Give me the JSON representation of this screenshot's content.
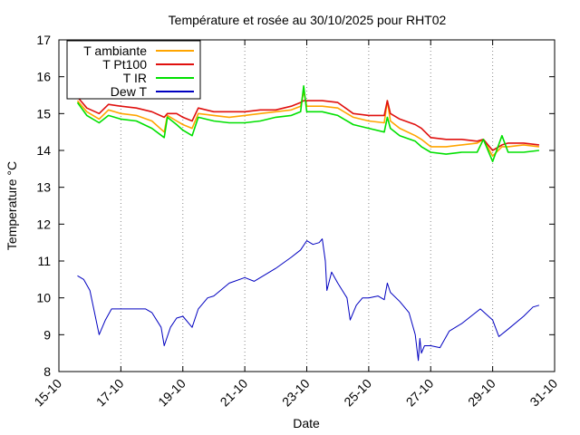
{
  "chart_data": {
    "type": "line",
    "title": "Température et rosée au 30/10/2025 pour RHT02",
    "xlabel": "Date",
    "ylabel": "Temperature °C",
    "xlim": [
      0,
      16
    ],
    "ylim": [
      8,
      17
    ],
    "x_ticks": [
      {
        "x": 0,
        "label": "15-10"
      },
      {
        "x": 2,
        "label": "17-10"
      },
      {
        "x": 4,
        "label": "19-10"
      },
      {
        "x": 6,
        "label": "21-10"
      },
      {
        "x": 8,
        "label": "23-10"
      },
      {
        "x": 10,
        "label": "25-10"
      },
      {
        "x": 12,
        "label": "27-10"
      },
      {
        "x": 14,
        "label": "29-10"
      },
      {
        "x": 16,
        "label": "31-10"
      }
    ],
    "y_ticks": [
      8,
      9,
      10,
      11,
      12,
      13,
      14,
      15,
      16,
      17
    ],
    "grid": "vertical dotted at each x tick",
    "legend_position": "top-left",
    "series": [
      {
        "name": "T ambiante",
        "color": "#ffa500",
        "points": [
          [
            0.6,
            15.35
          ],
          [
            0.9,
            15.05
          ],
          [
            1.3,
            14.85
          ],
          [
            1.6,
            15.1
          ],
          [
            2.0,
            15.0
          ],
          [
            2.5,
            14.95
          ],
          [
            3.0,
            14.8
          ],
          [
            3.4,
            14.5
          ],
          [
            3.5,
            14.95
          ],
          [
            3.8,
            14.8
          ],
          [
            4.0,
            14.7
          ],
          [
            4.3,
            14.6
          ],
          [
            4.5,
            15.0
          ],
          [
            5.0,
            14.95
          ],
          [
            5.5,
            14.9
          ],
          [
            6.0,
            14.95
          ],
          [
            6.5,
            15.0
          ],
          [
            7.0,
            15.05
          ],
          [
            7.5,
            15.1
          ],
          [
            7.8,
            15.2
          ],
          [
            7.9,
            15.6
          ],
          [
            8.0,
            15.2
          ],
          [
            8.5,
            15.2
          ],
          [
            9.0,
            15.15
          ],
          [
            9.5,
            14.9
          ],
          [
            10.0,
            14.8
          ],
          [
            10.5,
            14.75
          ],
          [
            10.6,
            15.35
          ],
          [
            10.7,
            14.8
          ],
          [
            11.0,
            14.6
          ],
          [
            11.5,
            14.4
          ],
          [
            11.7,
            14.3
          ],
          [
            12.0,
            14.1
          ],
          [
            12.5,
            14.1
          ],
          [
            13.0,
            14.15
          ],
          [
            13.5,
            14.2
          ],
          [
            13.7,
            14.3
          ],
          [
            14.0,
            13.85
          ],
          [
            14.3,
            14.1
          ],
          [
            14.5,
            14.1
          ],
          [
            15.0,
            14.15
          ],
          [
            15.5,
            14.1
          ]
        ]
      },
      {
        "name": "T Pt100",
        "color": "#e0100e",
        "points": [
          [
            0.6,
            15.45
          ],
          [
            0.9,
            15.15
          ],
          [
            1.3,
            15.0
          ],
          [
            1.6,
            15.25
          ],
          [
            2.0,
            15.2
          ],
          [
            2.5,
            15.15
          ],
          [
            3.0,
            15.05
          ],
          [
            3.4,
            14.9
          ],
          [
            3.5,
            15.0
          ],
          [
            3.8,
            15.0
          ],
          [
            4.0,
            14.9
          ],
          [
            4.3,
            14.8
          ],
          [
            4.5,
            15.15
          ],
          [
            5.0,
            15.05
          ],
          [
            5.5,
            15.05
          ],
          [
            6.0,
            15.05
          ],
          [
            6.5,
            15.1
          ],
          [
            7.0,
            15.1
          ],
          [
            7.5,
            15.2
          ],
          [
            7.8,
            15.3
          ],
          [
            7.9,
            15.35
          ],
          [
            8.0,
            15.35
          ],
          [
            8.5,
            15.35
          ],
          [
            9.0,
            15.3
          ],
          [
            9.5,
            15.0
          ],
          [
            10.0,
            14.95
          ],
          [
            10.5,
            14.95
          ],
          [
            10.6,
            15.35
          ],
          [
            10.7,
            15.0
          ],
          [
            11.0,
            14.85
          ],
          [
            11.5,
            14.7
          ],
          [
            11.7,
            14.6
          ],
          [
            12.0,
            14.35
          ],
          [
            12.5,
            14.3
          ],
          [
            13.0,
            14.3
          ],
          [
            13.5,
            14.25
          ],
          [
            13.7,
            14.3
          ],
          [
            14.0,
            14.0
          ],
          [
            14.3,
            14.15
          ],
          [
            14.5,
            14.2
          ],
          [
            15.0,
            14.2
          ],
          [
            15.5,
            14.15
          ]
        ]
      },
      {
        "name": "T IR",
        "color": "#00e000",
        "points": [
          [
            0.6,
            15.3
          ],
          [
            0.9,
            14.95
          ],
          [
            1.3,
            14.75
          ],
          [
            1.6,
            14.95
          ],
          [
            2.0,
            14.85
          ],
          [
            2.5,
            14.8
          ],
          [
            3.0,
            14.6
          ],
          [
            3.4,
            14.35
          ],
          [
            3.5,
            14.9
          ],
          [
            3.8,
            14.7
          ],
          [
            4.0,
            14.55
          ],
          [
            4.3,
            14.4
          ],
          [
            4.5,
            14.9
          ],
          [
            5.0,
            14.8
          ],
          [
            5.5,
            14.75
          ],
          [
            6.0,
            14.75
          ],
          [
            6.5,
            14.8
          ],
          [
            7.0,
            14.9
          ],
          [
            7.5,
            14.95
          ],
          [
            7.8,
            15.05
          ],
          [
            7.9,
            15.75
          ],
          [
            8.0,
            15.05
          ],
          [
            8.5,
            15.05
          ],
          [
            9.0,
            14.95
          ],
          [
            9.5,
            14.7
          ],
          [
            10.0,
            14.6
          ],
          [
            10.5,
            14.5
          ],
          [
            10.6,
            14.9
          ],
          [
            10.7,
            14.6
          ],
          [
            11.0,
            14.4
          ],
          [
            11.5,
            14.25
          ],
          [
            11.7,
            14.1
          ],
          [
            12.0,
            13.95
          ],
          [
            12.5,
            13.9
          ],
          [
            13.0,
            13.95
          ],
          [
            13.5,
            13.95
          ],
          [
            13.7,
            14.3
          ],
          [
            14.0,
            13.7
          ],
          [
            14.3,
            14.4
          ],
          [
            14.5,
            13.95
          ],
          [
            15.0,
            13.95
          ],
          [
            15.5,
            14.0
          ]
        ]
      },
      {
        "name": "Dew T",
        "color": "#0000c0",
        "points": [
          [
            0.6,
            10.6
          ],
          [
            0.8,
            10.5
          ],
          [
            1.0,
            10.2
          ],
          [
            1.3,
            9.0
          ],
          [
            1.5,
            9.4
          ],
          [
            1.7,
            9.7
          ],
          [
            2.0,
            9.7
          ],
          [
            2.5,
            9.7
          ],
          [
            2.8,
            9.7
          ],
          [
            3.0,
            9.6
          ],
          [
            3.3,
            9.2
          ],
          [
            3.4,
            8.7
          ],
          [
            3.6,
            9.2
          ],
          [
            3.8,
            9.45
          ],
          [
            4.0,
            9.5
          ],
          [
            4.3,
            9.2
          ],
          [
            4.5,
            9.7
          ],
          [
            4.8,
            10.0
          ],
          [
            5.0,
            10.05
          ],
          [
            5.5,
            10.4
          ],
          [
            6.0,
            10.55
          ],
          [
            6.3,
            10.45
          ],
          [
            6.6,
            10.6
          ],
          [
            7.0,
            10.8
          ],
          [
            7.5,
            11.1
          ],
          [
            7.8,
            11.3
          ],
          [
            8.0,
            11.55
          ],
          [
            8.2,
            11.45
          ],
          [
            8.4,
            11.5
          ],
          [
            8.5,
            11.6
          ],
          [
            8.6,
            11.0
          ],
          [
            8.65,
            10.2
          ],
          [
            8.8,
            10.7
          ],
          [
            9.0,
            10.4
          ],
          [
            9.3,
            10.0
          ],
          [
            9.4,
            9.4
          ],
          [
            9.6,
            9.8
          ],
          [
            9.8,
            10.0
          ],
          [
            10.0,
            10.0
          ],
          [
            10.3,
            10.05
          ],
          [
            10.5,
            9.95
          ],
          [
            10.6,
            10.4
          ],
          [
            10.7,
            10.15
          ],
          [
            11.0,
            9.9
          ],
          [
            11.3,
            9.6
          ],
          [
            11.5,
            9.0
          ],
          [
            11.6,
            8.3
          ],
          [
            11.65,
            8.9
          ],
          [
            11.7,
            8.5
          ],
          [
            11.8,
            8.7
          ],
          [
            12.0,
            8.7
          ],
          [
            12.3,
            8.65
          ],
          [
            12.6,
            9.1
          ],
          [
            13.0,
            9.3
          ],
          [
            13.3,
            9.5
          ],
          [
            13.6,
            9.7
          ],
          [
            14.0,
            9.4
          ],
          [
            14.2,
            8.95
          ],
          [
            14.5,
            9.15
          ],
          [
            15.0,
            9.5
          ],
          [
            15.3,
            9.75
          ],
          [
            15.5,
            9.8
          ]
        ]
      }
    ]
  }
}
